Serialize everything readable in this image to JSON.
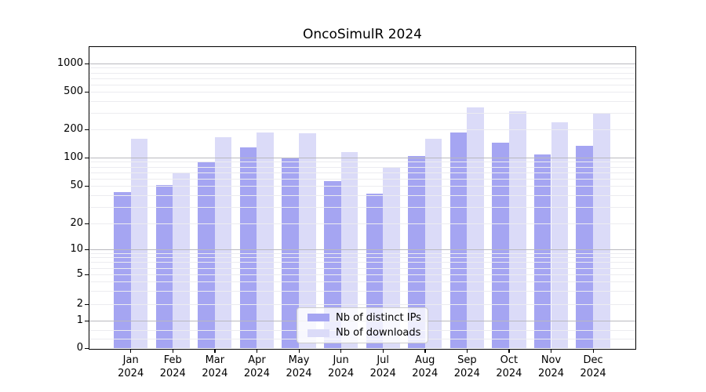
{
  "title": "OncoSimulR 2024",
  "chart_data": {
    "type": "bar",
    "title": "OncoSimulR 2024",
    "categories": [
      "Jan 2024",
      "Feb 2024",
      "Mar 2024",
      "Apr 2024",
      "May 2024",
      "Jun 2024",
      "Jul 2024",
      "Aug 2024",
      "Sep 2024",
      "Oct 2024",
      "Nov 2024",
      "Dec 2024"
    ],
    "series": [
      {
        "name": "Nb of distinct IPs",
        "color": "#a5a5f2",
        "values": [
          43,
          51,
          91,
          128,
          100,
          56,
          41,
          103,
          185,
          144,
          108,
          133
        ]
      },
      {
        "name": "Nb of downloads",
        "color": "#dbdbf8",
        "values": [
          160,
          69,
          165,
          186,
          180,
          115,
          79,
          160,
          340,
          308,
          238,
          292
        ]
      }
    ],
    "xlabel": "",
    "ylabel": "",
    "yscale": "symlog",
    "ylim": [
      0,
      1500
    ],
    "yticks": [
      0,
      1,
      2,
      5,
      10,
      20,
      50,
      100,
      200,
      500,
      1000
    ],
    "grid": "on",
    "legend_position": "bottom-center"
  },
  "legend": {
    "items": [
      {
        "label": "Nb of distinct IPs",
        "color": "#a5a5f2"
      },
      {
        "label": "Nb of downloads",
        "color": "#dbdbf8"
      }
    ]
  },
  "colors": {
    "distinct_ips_bar": "#a5a5f2",
    "downloads_bar": "#dbdbf8",
    "major_grid": "#b9b9bf",
    "minor_grid": "#ececf0",
    "spine": "#000000",
    "background": "#ffffff"
  }
}
